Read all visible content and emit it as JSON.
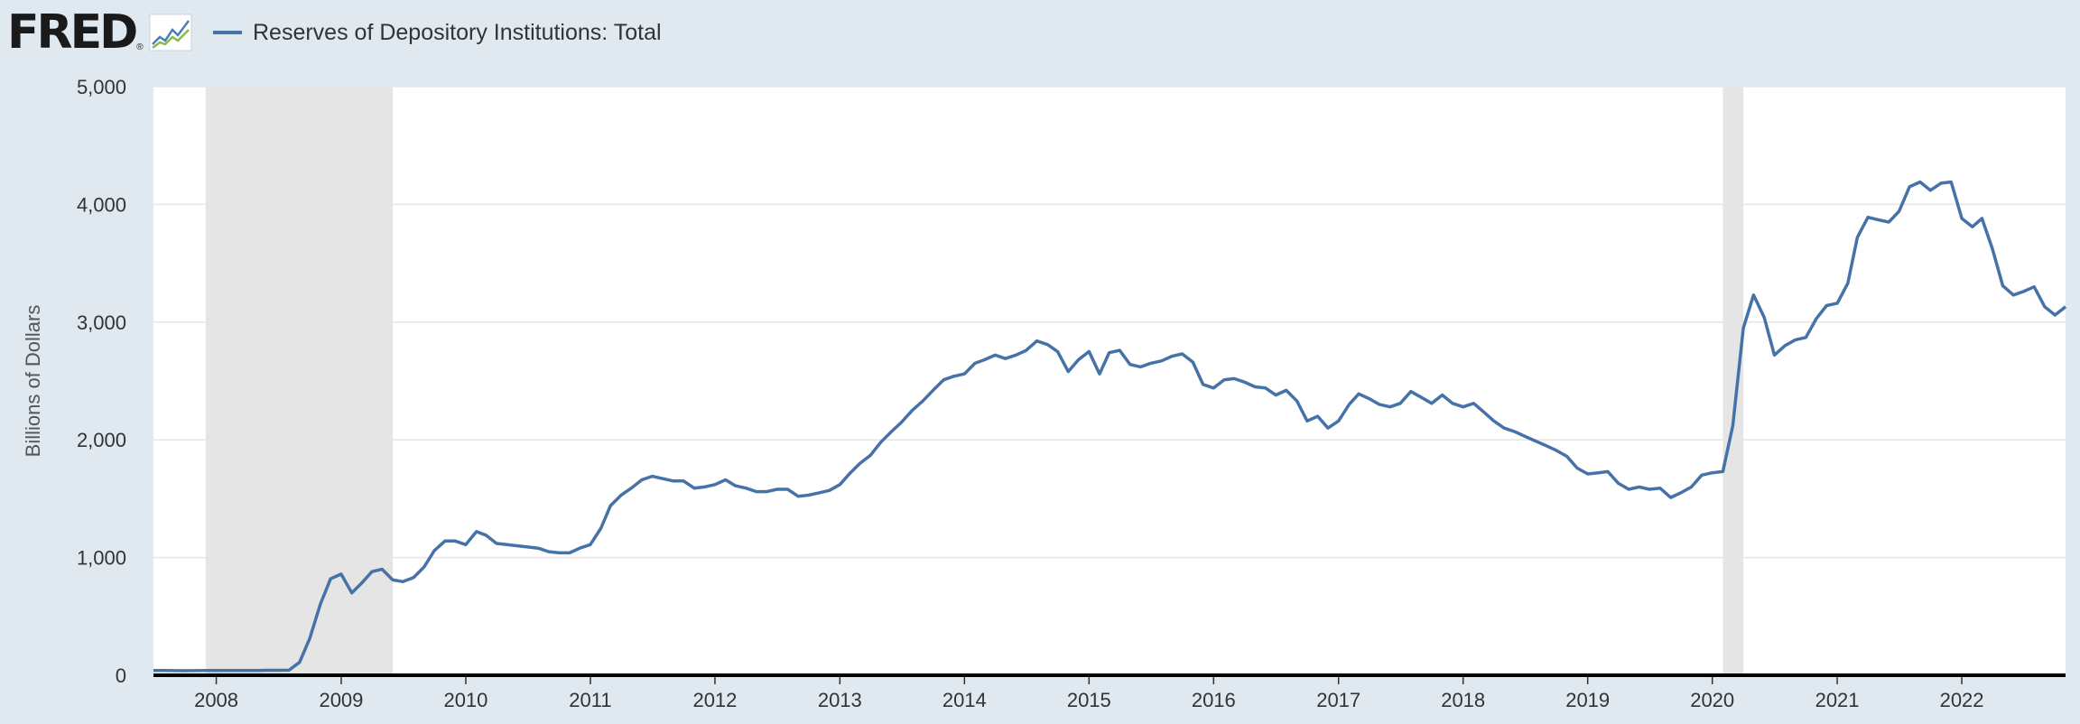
{
  "brand": {
    "name": "FRED",
    "registered_mark": "®"
  },
  "icons": {
    "graph": "line-graph-icon"
  },
  "colors": {
    "page_bg": "#e1e9f0",
    "plot_bg": "#ffffff",
    "series": "#4572a7",
    "recession": "#e5e5e5",
    "grid": "#e6e6e6",
    "axis": "#000000",
    "text": "#333333"
  },
  "chart_data": {
    "type": "line",
    "title": "",
    "xlabel": "",
    "ylabel": "Billions of Dollars",
    "ylim": [
      0,
      5000
    ],
    "y_ticks": [
      0,
      1000,
      2000,
      3000,
      4000,
      5000
    ],
    "y_tick_labels": [
      "0",
      "1,000",
      "2,000",
      "3,000",
      "4,000",
      "5,000"
    ],
    "xlim": [
      "2007-07-01",
      "2022-11-01"
    ],
    "x_tick_labels": [
      "2008",
      "2009",
      "2010",
      "2011",
      "2012",
      "2013",
      "2014",
      "2015",
      "2016",
      "2017",
      "2018",
      "2019",
      "2020",
      "2021",
      "2022"
    ],
    "grid": "horizontal",
    "recessions": [
      {
        "start": "2007-12-01",
        "end": "2009-06-01"
      },
      {
        "start": "2020-02-01",
        "end": "2020-04-01"
      }
    ],
    "series": [
      {
        "name": "Reserves of Depository Institutions: Total",
        "color": "#4572a7",
        "points": [
          [
            "2007-07-01",
            40
          ],
          [
            "2007-08-01",
            40
          ],
          [
            "2007-09-01",
            39
          ],
          [
            "2007-10-01",
            38
          ],
          [
            "2007-11-01",
            39
          ],
          [
            "2007-12-01",
            40
          ],
          [
            "2008-01-01",
            40
          ],
          [
            "2008-02-01",
            40
          ],
          [
            "2008-03-01",
            40
          ],
          [
            "2008-04-01",
            40
          ],
          [
            "2008-05-01",
            41
          ],
          [
            "2008-06-01",
            42
          ],
          [
            "2008-07-01",
            42
          ],
          [
            "2008-08-01",
            43
          ],
          [
            "2008-09-01",
            110
          ],
          [
            "2008-10-01",
            315
          ],
          [
            "2008-11-01",
            605
          ],
          [
            "2008-12-01",
            820
          ],
          [
            "2009-01-01",
            860
          ],
          [
            "2009-02-01",
            700
          ],
          [
            "2009-03-01",
            780
          ],
          [
            "2009-04-01",
            880
          ],
          [
            "2009-05-01",
            900
          ],
          [
            "2009-06-01",
            810
          ],
          [
            "2009-07-01",
            795
          ],
          [
            "2009-08-01",
            830
          ],
          [
            "2009-09-01",
            920
          ],
          [
            "2009-10-01",
            1060
          ],
          [
            "2009-11-01",
            1140
          ],
          [
            "2009-12-01",
            1140
          ],
          [
            "2010-01-01",
            1110
          ],
          [
            "2010-02-01",
            1220
          ],
          [
            "2010-03-01",
            1190
          ],
          [
            "2010-04-01",
            1120
          ],
          [
            "2010-05-01",
            1110
          ],
          [
            "2010-06-01",
            1100
          ],
          [
            "2010-07-01",
            1090
          ],
          [
            "2010-08-01",
            1080
          ],
          [
            "2010-09-01",
            1050
          ],
          [
            "2010-10-01",
            1040
          ],
          [
            "2010-11-01",
            1040
          ],
          [
            "2010-12-01",
            1080
          ],
          [
            "2011-01-01",
            1110
          ],
          [
            "2011-02-01",
            1250
          ],
          [
            "2011-03-01",
            1440
          ],
          [
            "2011-04-01",
            1530
          ],
          [
            "2011-05-01",
            1590
          ],
          [
            "2011-06-01",
            1660
          ],
          [
            "2011-07-01",
            1690
          ],
          [
            "2011-08-01",
            1670
          ],
          [
            "2011-09-01",
            1650
          ],
          [
            "2011-10-01",
            1650
          ],
          [
            "2011-11-01",
            1590
          ],
          [
            "2011-12-01",
            1600
          ],
          [
            "2012-01-01",
            1620
          ],
          [
            "2012-02-01",
            1660
          ],
          [
            "2012-03-01",
            1610
          ],
          [
            "2012-04-01",
            1590
          ],
          [
            "2012-05-01",
            1560
          ],
          [
            "2012-06-01",
            1560
          ],
          [
            "2012-07-01",
            1580
          ],
          [
            "2012-08-01",
            1580
          ],
          [
            "2012-09-01",
            1520
          ],
          [
            "2012-10-01",
            1530
          ],
          [
            "2012-11-01",
            1550
          ],
          [
            "2012-12-01",
            1570
          ],
          [
            "2013-01-01",
            1620
          ],
          [
            "2013-02-01",
            1720
          ],
          [
            "2013-03-01",
            1800
          ],
          [
            "2013-04-01",
            1870
          ],
          [
            "2013-05-01",
            1980
          ],
          [
            "2013-06-01",
            2070
          ],
          [
            "2013-07-01",
            2150
          ],
          [
            "2013-08-01",
            2250
          ],
          [
            "2013-09-01",
            2330
          ],
          [
            "2013-10-01",
            2420
          ],
          [
            "2013-11-01",
            2510
          ],
          [
            "2013-12-01",
            2540
          ],
          [
            "2014-01-01",
            2560
          ],
          [
            "2014-02-01",
            2650
          ],
          [
            "2014-03-01",
            2680
          ],
          [
            "2014-04-01",
            2720
          ],
          [
            "2014-05-01",
            2690
          ],
          [
            "2014-06-01",
            2720
          ],
          [
            "2014-07-01",
            2760
          ],
          [
            "2014-08-01",
            2840
          ],
          [
            "2014-09-01",
            2810
          ],
          [
            "2014-10-01",
            2750
          ],
          [
            "2014-11-01",
            2580
          ],
          [
            "2014-12-01",
            2680
          ],
          [
            "2015-01-01",
            2750
          ],
          [
            "2015-02-01",
            2560
          ],
          [
            "2015-03-01",
            2740
          ],
          [
            "2015-04-01",
            2760
          ],
          [
            "2015-05-01",
            2640
          ],
          [
            "2015-06-01",
            2620
          ],
          [
            "2015-07-01",
            2650
          ],
          [
            "2015-08-01",
            2670
          ],
          [
            "2015-09-01",
            2710
          ],
          [
            "2015-10-01",
            2730
          ],
          [
            "2015-11-01",
            2660
          ],
          [
            "2015-12-01",
            2470
          ],
          [
            "2016-01-01",
            2440
          ],
          [
            "2016-02-01",
            2510
          ],
          [
            "2016-03-01",
            2520
          ],
          [
            "2016-04-01",
            2490
          ],
          [
            "2016-05-01",
            2450
          ],
          [
            "2016-06-01",
            2440
          ],
          [
            "2016-07-01",
            2380
          ],
          [
            "2016-08-01",
            2420
          ],
          [
            "2016-09-01",
            2330
          ],
          [
            "2016-10-01",
            2160
          ],
          [
            "2016-11-01",
            2200
          ],
          [
            "2016-12-01",
            2100
          ],
          [
            "2017-01-01",
            2160
          ],
          [
            "2017-02-01",
            2300
          ],
          [
            "2017-03-01",
            2390
          ],
          [
            "2017-04-01",
            2350
          ],
          [
            "2017-05-01",
            2300
          ],
          [
            "2017-06-01",
            2280
          ],
          [
            "2017-07-01",
            2310
          ],
          [
            "2017-08-01",
            2410
          ],
          [
            "2017-09-01",
            2360
          ],
          [
            "2017-10-01",
            2310
          ],
          [
            "2017-11-01",
            2380
          ],
          [
            "2017-12-01",
            2310
          ],
          [
            "2018-01-01",
            2280
          ],
          [
            "2018-02-01",
            2310
          ],
          [
            "2018-03-01",
            2240
          ],
          [
            "2018-04-01",
            2160
          ],
          [
            "2018-05-01",
            2100
          ],
          [
            "2018-06-01",
            2070
          ],
          [
            "2018-07-01",
            2030
          ],
          [
            "2018-08-01",
            1990
          ],
          [
            "2018-09-01",
            1950
          ],
          [
            "2018-10-01",
            1910
          ],
          [
            "2018-11-01",
            1860
          ],
          [
            "2018-12-01",
            1760
          ],
          [
            "2019-01-01",
            1710
          ],
          [
            "2019-02-01",
            1720
          ],
          [
            "2019-03-01",
            1730
          ],
          [
            "2019-04-01",
            1630
          ],
          [
            "2019-05-01",
            1580
          ],
          [
            "2019-06-01",
            1600
          ],
          [
            "2019-07-01",
            1580
          ],
          [
            "2019-08-01",
            1590
          ],
          [
            "2019-09-01",
            1510
          ],
          [
            "2019-10-01",
            1550
          ],
          [
            "2019-11-01",
            1600
          ],
          [
            "2019-12-01",
            1700
          ],
          [
            "2020-01-01",
            1720
          ],
          [
            "2020-02-01",
            1730
          ],
          [
            "2020-03-01",
            2120
          ],
          [
            "2020-04-01",
            2950
          ],
          [
            "2020-05-01",
            3230
          ],
          [
            "2020-06-01",
            3040
          ],
          [
            "2020-07-01",
            2720
          ],
          [
            "2020-08-01",
            2800
          ],
          [
            "2020-09-01",
            2850
          ],
          [
            "2020-10-01",
            2870
          ],
          [
            "2020-11-01",
            3030
          ],
          [
            "2020-12-01",
            3140
          ],
          [
            "2021-01-01",
            3160
          ],
          [
            "2021-02-01",
            3330
          ],
          [
            "2021-03-01",
            3720
          ],
          [
            "2021-04-01",
            3890
          ],
          [
            "2021-05-01",
            3870
          ],
          [
            "2021-06-01",
            3850
          ],
          [
            "2021-07-01",
            3940
          ],
          [
            "2021-08-01",
            4150
          ],
          [
            "2021-09-01",
            4190
          ],
          [
            "2021-10-01",
            4120
          ],
          [
            "2021-11-01",
            4180
          ],
          [
            "2021-12-01",
            4190
          ],
          [
            "2022-01-01",
            3880
          ],
          [
            "2022-02-01",
            3810
          ],
          [
            "2022-03-01",
            3880
          ],
          [
            "2022-04-01",
            3620
          ],
          [
            "2022-05-01",
            3310
          ],
          [
            "2022-06-01",
            3230
          ],
          [
            "2022-07-01",
            3260
          ],
          [
            "2022-08-01",
            3300
          ],
          [
            "2022-09-01",
            3130
          ],
          [
            "2022-10-01",
            3060
          ],
          [
            "2022-11-01",
            3130
          ]
        ]
      }
    ]
  }
}
